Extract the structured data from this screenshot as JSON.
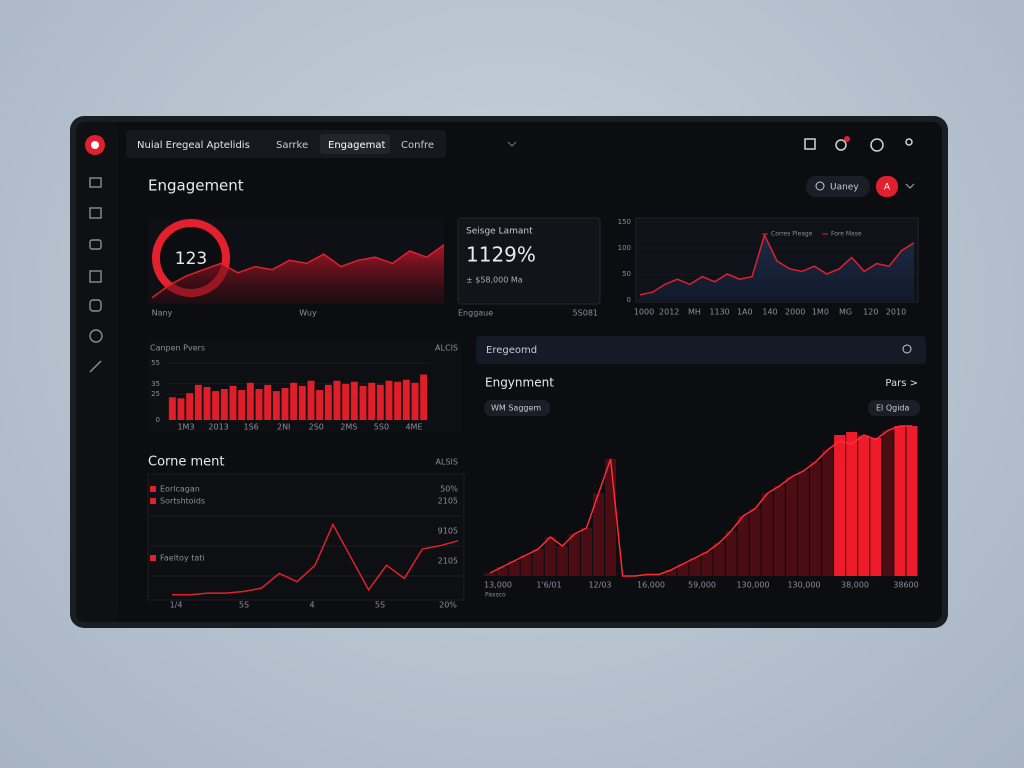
{
  "nav": {
    "title": "Nuial Eregeal Aptelidis",
    "tabs": [
      "Sarrke",
      "Engagemat",
      "Confre"
    ]
  },
  "header": {
    "title": "Engagement",
    "search": "Uaney",
    "badge": "A"
  },
  "donut_panel": {
    "center_label": "123",
    "x_labels": [
      "Nany",
      "Wuy"
    ],
    "color": "#e0202e",
    "values": [
      2,
      6,
      9,
      11,
      13,
      10,
      12,
      11,
      14,
      13,
      16,
      12,
      14,
      15,
      13,
      17,
      15,
      19
    ],
    "ylim": [
      0,
      25
    ]
  },
  "stat_card": {
    "title": "Seisge Lamant",
    "value": "1129%",
    "sub": "± $58,000 Ma",
    "footer_left": "Enggaue",
    "footer_right": "5S081"
  },
  "trend": {
    "legend": [
      "Corres Pleage",
      "Fore Mase"
    ],
    "color": "#e0202e",
    "ylim": [
      0,
      150
    ],
    "yticks": [
      0,
      50,
      100,
      150
    ],
    "x_labels": [
      "1000",
      "2012",
      "MH",
      "1130",
      "1A0",
      "140",
      "2000",
      "1M0",
      "MG",
      "120",
      "2010"
    ],
    "values": [
      10,
      15,
      30,
      40,
      30,
      45,
      35,
      50,
      40,
      45,
      125,
      75,
      60,
      55,
      65,
      50,
      60,
      82,
      55,
      70,
      65,
      95,
      110
    ]
  },
  "bars": {
    "title": "Canpen Pvers",
    "tag": "ALCIS",
    "color": "#e01e2a",
    "ylim": [
      0,
      60
    ],
    "yticks": [
      0,
      25,
      35,
      55
    ],
    "x_labels": [
      "1M3",
      "2013",
      "1S6",
      "2NI",
      "2S0",
      "2MS",
      "5S0",
      "4ME"
    ],
    "values": [
      22,
      21,
      26,
      34,
      32,
      28,
      30,
      33,
      29,
      36,
      30,
      34,
      28,
      31,
      36,
      33,
      38,
      29,
      34,
      38,
      35,
      37,
      33,
      36,
      34,
      38,
      37,
      39,
      36,
      44
    ]
  },
  "line_panel": {
    "title": "Corne ment",
    "tag": "ALSIS",
    "color": "#e0202e",
    "legend": [
      "Eorlcagan",
      "Sortshtoids",
      "Faeltoy tati"
    ],
    "right_labels": [
      "50%",
      "2105",
      "9105",
      "2105"
    ],
    "x_labels": [
      "1/4",
      "5S",
      "4",
      "5S",
      "20%"
    ],
    "values": [
      2,
      2,
      3,
      3,
      4,
      6,
      15,
      10,
      20,
      45,
      25,
      5,
      20,
      12,
      30,
      32,
      35
    ],
    "ylim": [
      0,
      60
    ]
  },
  "big_panel": {
    "search": "Eregeomd",
    "title": "Engynment",
    "link": "Pars >",
    "chips": [
      "WM Saggem",
      "El Qgida"
    ],
    "x_labels": [
      "13,000",
      "1'6/01",
      "12/03",
      "16,000",
      "59,000",
      "130,000",
      "130,000",
      "38,000",
      "38600"
    ],
    "sub_label": "Paxsco",
    "ylim": [
      0,
      100
    ],
    "color": "#4a0d14",
    "accent_color": "#ee1c2a",
    "line_color": "#ff2a34",
    "values": [
      2,
      6,
      10,
      14,
      18,
      26,
      20,
      28,
      32,
      55,
      78,
      0,
      0,
      1,
      1,
      4,
      8,
      12,
      16,
      22,
      30,
      40,
      45,
      55,
      60,
      66,
      70,
      76,
      84,
      90,
      88,
      94,
      91,
      97,
      100,
      100
    ],
    "accent_values": [
      null,
      null,
      null,
      null,
      null,
      null,
      null,
      null,
      null,
      null,
      null,
      null,
      null,
      null,
      null,
      null,
      null,
      null,
      null,
      null,
      null,
      null,
      null,
      null,
      null,
      null,
      null,
      null,
      null,
      94,
      96,
      93,
      92,
      null,
      100,
      100
    ]
  }
}
